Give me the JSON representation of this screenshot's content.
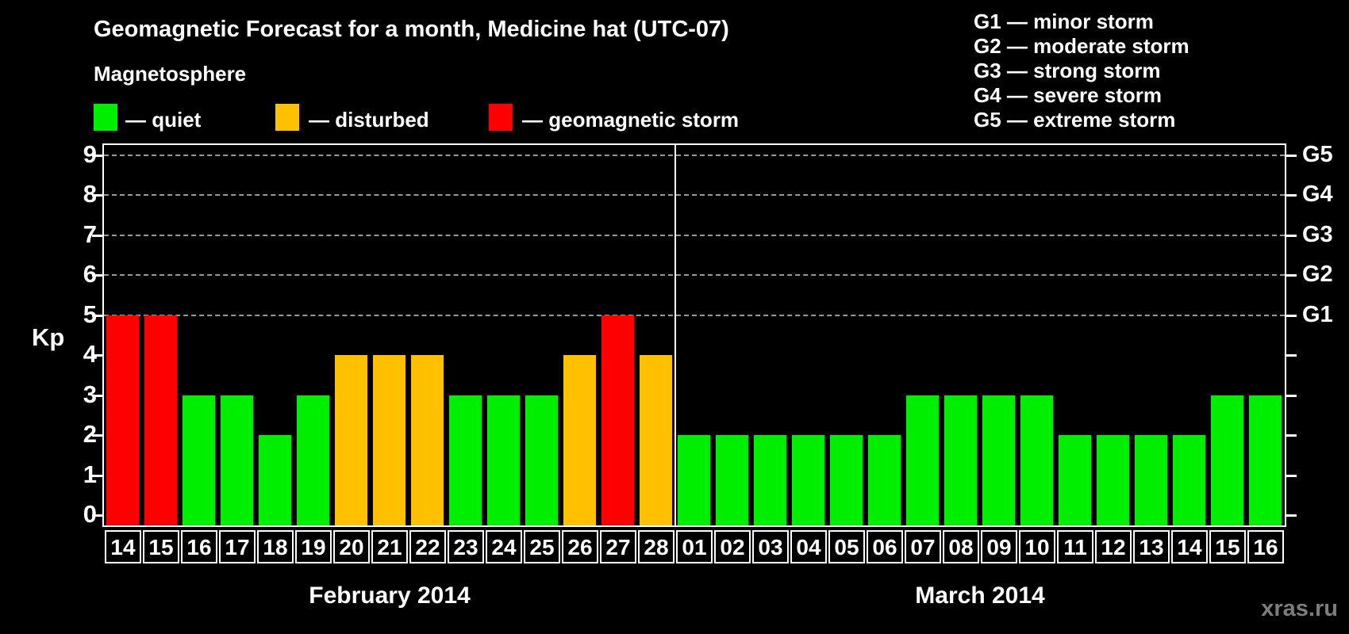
{
  "page": {
    "background": "#000000",
    "watermark": "xras.ru"
  },
  "header": {
    "title": "Geomagnetic Forecast for a month, Medicine hat (UTC-07)"
  },
  "legend": {
    "heading": "Magnetosphere",
    "items": [
      {
        "key": "quiet",
        "label": "— quiet"
      },
      {
        "key": "disturbed",
        "label": "— disturbed"
      },
      {
        "key": "storm",
        "label": "— geomagnetic storm"
      }
    ]
  },
  "g_legend": {
    "items": [
      "G1 — minor storm",
      "G2 — moderate storm",
      "G3 — strong storm",
      "G4 — severe storm",
      "G5 — extreme storm"
    ]
  },
  "colors": {
    "quiet": "#00EE00",
    "disturbed": "#FFC000",
    "storm": "#FF0000",
    "grid": "#999999",
    "axis": "#FFFFFF",
    "watermark": "#7D7D7D",
    "background": "#000000"
  },
  "chart_data": {
    "type": "bar",
    "title": "Geomagnetic Forecast for a month, Medicine hat (UTC-07)",
    "ylabel": "Kp",
    "ylim": [
      0,
      9
    ],
    "yticks": [
      0,
      1,
      2,
      3,
      4,
      5,
      6,
      7,
      8,
      9
    ],
    "gridlines_at": [
      5,
      6,
      7,
      8,
      9
    ],
    "grid": "dashed horizontal lines at storm thresholds only",
    "legend_position": "top-left",
    "right_axis": [
      {
        "kp": 5,
        "label": "G1"
      },
      {
        "kp": 6,
        "label": "G2"
      },
      {
        "kp": 7,
        "label": "G3"
      },
      {
        "kp": 8,
        "label": "G4"
      },
      {
        "kp": 9,
        "label": "G5"
      }
    ],
    "groups": [
      {
        "label": "February 2014",
        "categories": [
          "14",
          "15",
          "16",
          "17",
          "18",
          "19",
          "20",
          "21",
          "22",
          "23",
          "24",
          "25",
          "26",
          "27",
          "28"
        ],
        "values": [
          5,
          5,
          3,
          3,
          2,
          3,
          4,
          4,
          4,
          3,
          3,
          3,
          4,
          5,
          4
        ],
        "statuses": [
          "storm",
          "storm",
          "quiet",
          "quiet",
          "quiet",
          "quiet",
          "disturbed",
          "disturbed",
          "disturbed",
          "quiet",
          "quiet",
          "quiet",
          "disturbed",
          "storm",
          "disturbed"
        ]
      },
      {
        "label": "March 2014",
        "categories": [
          "01",
          "02",
          "03",
          "04",
          "05",
          "06",
          "07",
          "08",
          "09",
          "10",
          "11",
          "12",
          "13",
          "14",
          "15",
          "16"
        ],
        "values": [
          2,
          2,
          2,
          2,
          2,
          2,
          3,
          3,
          3,
          3,
          2,
          2,
          2,
          2,
          3,
          3
        ],
        "statuses": [
          "quiet",
          "quiet",
          "quiet",
          "quiet",
          "quiet",
          "quiet",
          "quiet",
          "quiet",
          "quiet",
          "quiet",
          "quiet",
          "quiet",
          "quiet",
          "quiet",
          "quiet",
          "quiet"
        ]
      }
    ]
  }
}
